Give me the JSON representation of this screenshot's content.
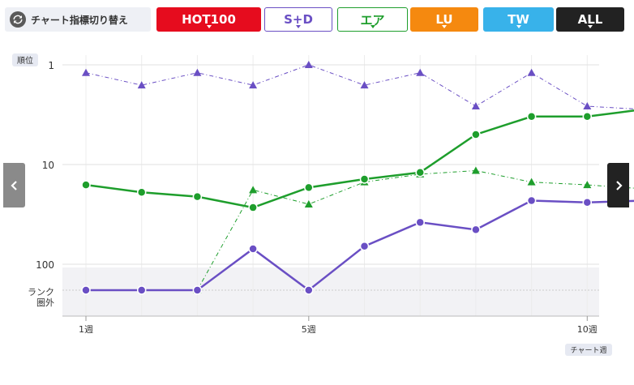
{
  "header": {
    "switch_label": "チャート指標切り替え",
    "switch_icon": "sync-icon",
    "tabs": [
      {
        "label": "HOT100",
        "bg": "#e60c1e",
        "fg": "#ffffff",
        "border": "#e60c1e"
      },
      {
        "label": "S+D",
        "bg": "#ffffff",
        "fg": "#6a4fc4",
        "border": "#6a4fc4"
      },
      {
        "label": "エア",
        "bg": "#ffffff",
        "fg": "#1e9e2c",
        "border": "#1e9e2c"
      },
      {
        "label": "LU",
        "bg": "#f5890f",
        "fg": "#ffffff",
        "border": "#f5890f"
      },
      {
        "label": "TW",
        "bg": "#38b2ea",
        "fg": "#ffffff",
        "border": "#38b2ea"
      },
      {
        "label": "ALL",
        "bg": "#222222",
        "fg": "#ffffff",
        "border": "#222222"
      }
    ]
  },
  "nav": {
    "prev_icon": "chevron-left-icon",
    "next_icon": "chevron-right-icon"
  },
  "chart_data": {
    "type": "line",
    "ylabel": "順位",
    "xlabel": "チャート週",
    "y_scale": "log",
    "y_ticks": [
      1,
      10,
      100
    ],
    "out_of_rank_label": [
      "ランク",
      "圏外"
    ],
    "x": [
      1,
      2,
      3,
      4,
      5,
      6,
      7,
      8,
      9,
      10,
      11
    ],
    "x_tick_labels": [
      {
        "x": 1,
        "label": "1週"
      },
      {
        "x": 5,
        "label": "5週"
      },
      {
        "x": 10,
        "label": "10週"
      }
    ],
    "series": [
      {
        "color": "#1e9e2c",
        "marker": "circle",
        "style": "solid",
        "values": [
          16,
          19,
          21,
          27,
          17,
          14,
          12,
          5,
          3.3,
          3.3,
          2.8
        ]
      },
      {
        "color": "#1e9e2c",
        "marker": "triangle",
        "style": "dashdot",
        "values": [
          null,
          null,
          "out",
          18,
          25,
          15,
          12.5,
          11.5,
          15,
          16,
          17.5
        ]
      },
      {
        "color": "#6a4fc4",
        "marker": "circle",
        "style": "solid",
        "values": [
          "out",
          "out",
          "out",
          70,
          "out",
          66,
          38,
          45,
          23,
          24,
          23
        ]
      },
      {
        "color": "#6a4fc4",
        "marker": "triangle",
        "style": "dashdot",
        "values": [
          1.2,
          1.6,
          1.2,
          1.6,
          1,
          1.6,
          1.2,
          2.6,
          1.2,
          2.6,
          2.8
        ]
      }
    ]
  }
}
